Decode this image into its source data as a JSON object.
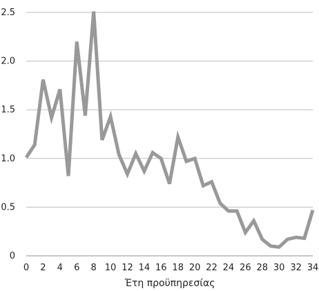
{
  "chart_data": {
    "type": "line",
    "title": "",
    "xlabel": "Έτη προϋπηρεσίας",
    "ylabel": "",
    "xlim": [
      0,
      34
    ],
    "ylim": [
      0,
      2.5
    ],
    "grid": true,
    "legend": "none",
    "x_ticks": [
      "0",
      "2",
      "4",
      "6",
      "8",
      "10",
      "12",
      "14",
      "16",
      "18",
      "20",
      "22",
      "24",
      "26",
      "28",
      "30",
      "32",
      "34"
    ],
    "y_ticks": [
      "0",
      "0.5",
      "1.0",
      "1.5",
      "2.0",
      "2.5"
    ],
    "series": [
      {
        "color": "#999999",
        "x": [
          0,
          1,
          2,
          3,
          4,
          5,
          6,
          7,
          8,
          9,
          10,
          11,
          12,
          13,
          14,
          15,
          16,
          17,
          18,
          19,
          20,
          21,
          22,
          23,
          24,
          25,
          26,
          27,
          28,
          29,
          30,
          31,
          32,
          33,
          34
        ],
        "values": [
          1.01,
          1.14,
          1.81,
          1.42,
          1.71,
          0.82,
          2.2,
          1.44,
          2.51,
          1.19,
          1.43,
          1.04,
          0.84,
          1.05,
          0.87,
          1.06,
          1.0,
          0.74,
          1.22,
          0.97,
          1.0,
          0.72,
          0.76,
          0.54,
          0.46,
          0.46,
          0.24,
          0.36,
          0.17,
          0.1,
          0.09,
          0.17,
          0.19,
          0.18,
          0.47
        ]
      }
    ]
  }
}
